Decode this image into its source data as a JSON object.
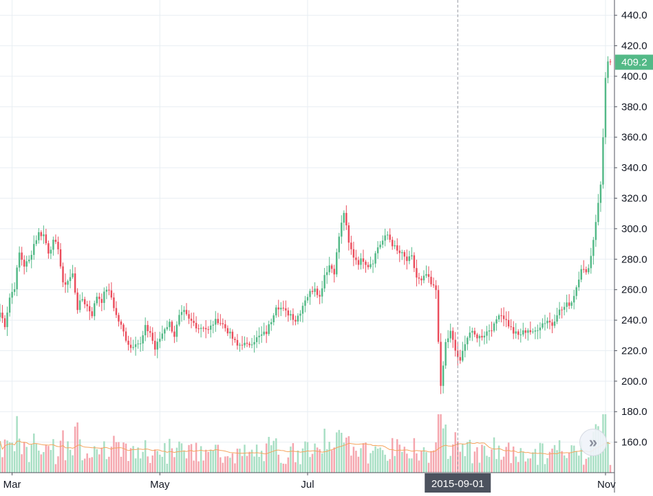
{
  "chart_data": {
    "type": "candlestick",
    "title": "",
    "colors": {
      "up": "#53b987",
      "down": "#eb4d5c",
      "volume_up": "#a8dfc4",
      "volume_down": "#f5a6ae",
      "ma": "#f5a35c",
      "grid": "#e8eef3",
      "price_tag": "#53b987"
    },
    "y_axis": {
      "ticks": [
        "160.0",
        "180.0",
        "200.0",
        "220.0",
        "240.0",
        "260.0",
        "280.0",
        "300.0",
        "320.0",
        "340.0",
        "360.0",
        "380.0",
        "400.0",
        "420.0",
        "440.0"
      ],
      "range": [
        140,
        450
      ]
    },
    "x_axis": {
      "labels": [
        "Mar",
        "May",
        "Jul",
        "Nov"
      ],
      "label_dates": [
        "2015-03-01",
        "2015-05-01",
        "2015-07-01",
        "2015-11-01"
      ],
      "range": [
        "2015-02-24",
        "2015-11-03"
      ]
    },
    "crosshair": {
      "date_label": "2015-09-01"
    },
    "last_price": {
      "label": "409.2",
      "value": 409.2
    },
    "grid": true,
    "close_path": [
      [
        "2015-02-24",
        245
      ],
      [
        "2015-02-26",
        237
      ],
      [
        "2015-02-28",
        255
      ],
      [
        "2015-03-02",
        262
      ],
      [
        "2015-03-04",
        284
      ],
      [
        "2015-03-06",
        276
      ],
      [
        "2015-03-08",
        279
      ],
      [
        "2015-03-10",
        290
      ],
      [
        "2015-03-12",
        297
      ],
      [
        "2015-03-14",
        296
      ],
      [
        "2015-03-16",
        285
      ],
      [
        "2015-03-18",
        291
      ],
      [
        "2015-03-20",
        288
      ],
      [
        "2015-03-22",
        263
      ],
      [
        "2015-03-24",
        266
      ],
      [
        "2015-03-26",
        270
      ],
      [
        "2015-03-28",
        248
      ],
      [
        "2015-03-30",
        254
      ],
      [
        "2015-04-01",
        249
      ],
      [
        "2015-04-03",
        244
      ],
      [
        "2015-04-05",
        256
      ],
      [
        "2015-04-07",
        253
      ],
      [
        "2015-04-09",
        261
      ],
      [
        "2015-04-11",
        255
      ],
      [
        "2015-04-13",
        243
      ],
      [
        "2015-04-15",
        236
      ],
      [
        "2015-04-17",
        228
      ],
      [
        "2015-04-19",
        222
      ],
      [
        "2015-04-21",
        226
      ],
      [
        "2015-04-23",
        224
      ],
      [
        "2015-04-25",
        235
      ],
      [
        "2015-04-27",
        232
      ],
      [
        "2015-04-29",
        221
      ],
      [
        "2015-05-01",
        228
      ],
      [
        "2015-05-03",
        235
      ],
      [
        "2015-05-05",
        238
      ],
      [
        "2015-05-07",
        230
      ],
      [
        "2015-05-09",
        242
      ],
      [
        "2015-05-11",
        245
      ],
      [
        "2015-05-13",
        240
      ],
      [
        "2015-05-15",
        238
      ],
      [
        "2015-05-17",
        235
      ],
      [
        "2015-05-19",
        236
      ],
      [
        "2015-05-21",
        233
      ],
      [
        "2015-05-23",
        238
      ],
      [
        "2015-05-25",
        240
      ],
      [
        "2015-05-27",
        237
      ],
      [
        "2015-05-29",
        233
      ],
      [
        "2015-05-31",
        228
      ],
      [
        "2015-06-02",
        223
      ],
      [
        "2015-06-04",
        225
      ],
      [
        "2015-06-06",
        223
      ],
      [
        "2015-06-08",
        226
      ],
      [
        "2015-06-10",
        228
      ],
      [
        "2015-06-12",
        230
      ],
      [
        "2015-06-14",
        232
      ],
      [
        "2015-06-16",
        240
      ],
      [
        "2015-06-18",
        250
      ],
      [
        "2015-06-20",
        248
      ],
      [
        "2015-06-22",
        245
      ],
      [
        "2015-06-24",
        244
      ],
      [
        "2015-06-26",
        240
      ],
      [
        "2015-06-28",
        246
      ],
      [
        "2015-06-30",
        254
      ],
      [
        "2015-07-02",
        258
      ],
      [
        "2015-07-04",
        262
      ],
      [
        "2015-07-06",
        255
      ],
      [
        "2015-07-08",
        270
      ],
      [
        "2015-07-10",
        276
      ],
      [
        "2015-07-12",
        272
      ],
      [
        "2015-07-14",
        295
      ],
      [
        "2015-07-16",
        311
      ],
      [
        "2015-07-18",
        290
      ],
      [
        "2015-07-20",
        282
      ],
      [
        "2015-07-22",
        278
      ],
      [
        "2015-07-24",
        280
      ],
      [
        "2015-07-26",
        276
      ],
      [
        "2015-07-28",
        279
      ],
      [
        "2015-07-30",
        288
      ],
      [
        "2015-08-01",
        292
      ],
      [
        "2015-08-03",
        296
      ],
      [
        "2015-08-05",
        290
      ],
      [
        "2015-08-07",
        285
      ],
      [
        "2015-08-09",
        283
      ],
      [
        "2015-08-11",
        279
      ],
      [
        "2015-08-13",
        281
      ],
      [
        "2015-08-15",
        268
      ],
      [
        "2015-08-17",
        265
      ],
      [
        "2015-08-19",
        270
      ],
      [
        "2015-08-21",
        263
      ],
      [
        "2015-08-23",
        260
      ],
      [
        "2015-08-25",
        195
      ],
      [
        "2015-08-27",
        225
      ],
      [
        "2015-08-29",
        232
      ],
      [
        "2015-08-31",
        220
      ],
      [
        "2015-09-02",
        212
      ],
      [
        "2015-09-04",
        226
      ],
      [
        "2015-09-06",
        232
      ],
      [
        "2015-09-08",
        230
      ],
      [
        "2015-09-10",
        229
      ],
      [
        "2015-09-12",
        231
      ],
      [
        "2015-09-14",
        234
      ],
      [
        "2015-09-16",
        236
      ],
      [
        "2015-09-18",
        245
      ],
      [
        "2015-09-20",
        242
      ],
      [
        "2015-09-22",
        237
      ],
      [
        "2015-09-24",
        232
      ],
      [
        "2015-09-26",
        230
      ],
      [
        "2015-09-28",
        232
      ],
      [
        "2015-09-30",
        234
      ],
      [
        "2015-10-02",
        231
      ],
      [
        "2015-10-04",
        235
      ],
      [
        "2015-10-06",
        238
      ],
      [
        "2015-10-08",
        240
      ],
      [
        "2015-10-10",
        237
      ],
      [
        "2015-10-12",
        245
      ],
      [
        "2015-10-14",
        247
      ],
      [
        "2015-10-16",
        250
      ],
      [
        "2015-10-18",
        252
      ],
      [
        "2015-10-20",
        262
      ],
      [
        "2015-10-22",
        275
      ],
      [
        "2015-10-24",
        270
      ],
      [
        "2015-10-26",
        282
      ],
      [
        "2015-10-28",
        305
      ],
      [
        "2015-10-29",
        318
      ],
      [
        "2015-10-30",
        328
      ],
      [
        "2015-10-31",
        360
      ],
      [
        "2015-11-01",
        400
      ],
      [
        "2015-11-02",
        409.2
      ]
    ]
  },
  "controls": {
    "scroll_button_glyph": "»"
  }
}
